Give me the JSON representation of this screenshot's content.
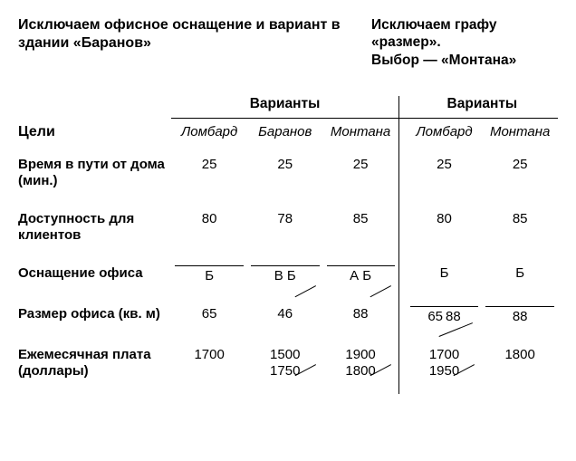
{
  "headers": {
    "left": "Исключаем офисное оснащение и вариант в здании «Баранов»",
    "right": "Исключаем графу «размер».\nВыбор — «Монтана»"
  },
  "superhead": {
    "left": "Варианты",
    "right": "Варианты"
  },
  "columns": {
    "goals": "Цели",
    "lombard": "Ломбард",
    "baranov": "Баранов",
    "montana": "Монтана",
    "lombard2": "Ломбард",
    "montana2": "Монтана"
  },
  "rows": {
    "travel": {
      "label": "Время в пути от дома (мин.)",
      "lombard": "25",
      "baranov": "25",
      "montana": "25",
      "lombard2": "25",
      "montana2": "25"
    },
    "access": {
      "label": "Доступность для клиентов",
      "lombard": "80",
      "baranov": "78",
      "montana": "85",
      "lombard2": "80",
      "montana2": "85"
    },
    "equip": {
      "label": "Оснащение офиса",
      "lombard": "Б",
      "baranov": "В Б",
      "montana": "А Б",
      "lombard2": "Б",
      "montana2": "Б"
    },
    "size": {
      "label": "Размер офиса (кв. м)",
      "lombard": "65",
      "baranov": "46",
      "montana": "88",
      "lombard2_a": "65",
      "lombard2_b": "88",
      "montana2": "88"
    },
    "rent": {
      "label": "Ежемесячная плата (доллары)",
      "lombard": "1700",
      "baranov_a": "1500",
      "baranov_b": "1750",
      "montana_a": "1900",
      "montana_b": "1800",
      "lombard2_a": "1700",
      "lombard2_b": "1950",
      "montana2": "1800"
    }
  }
}
